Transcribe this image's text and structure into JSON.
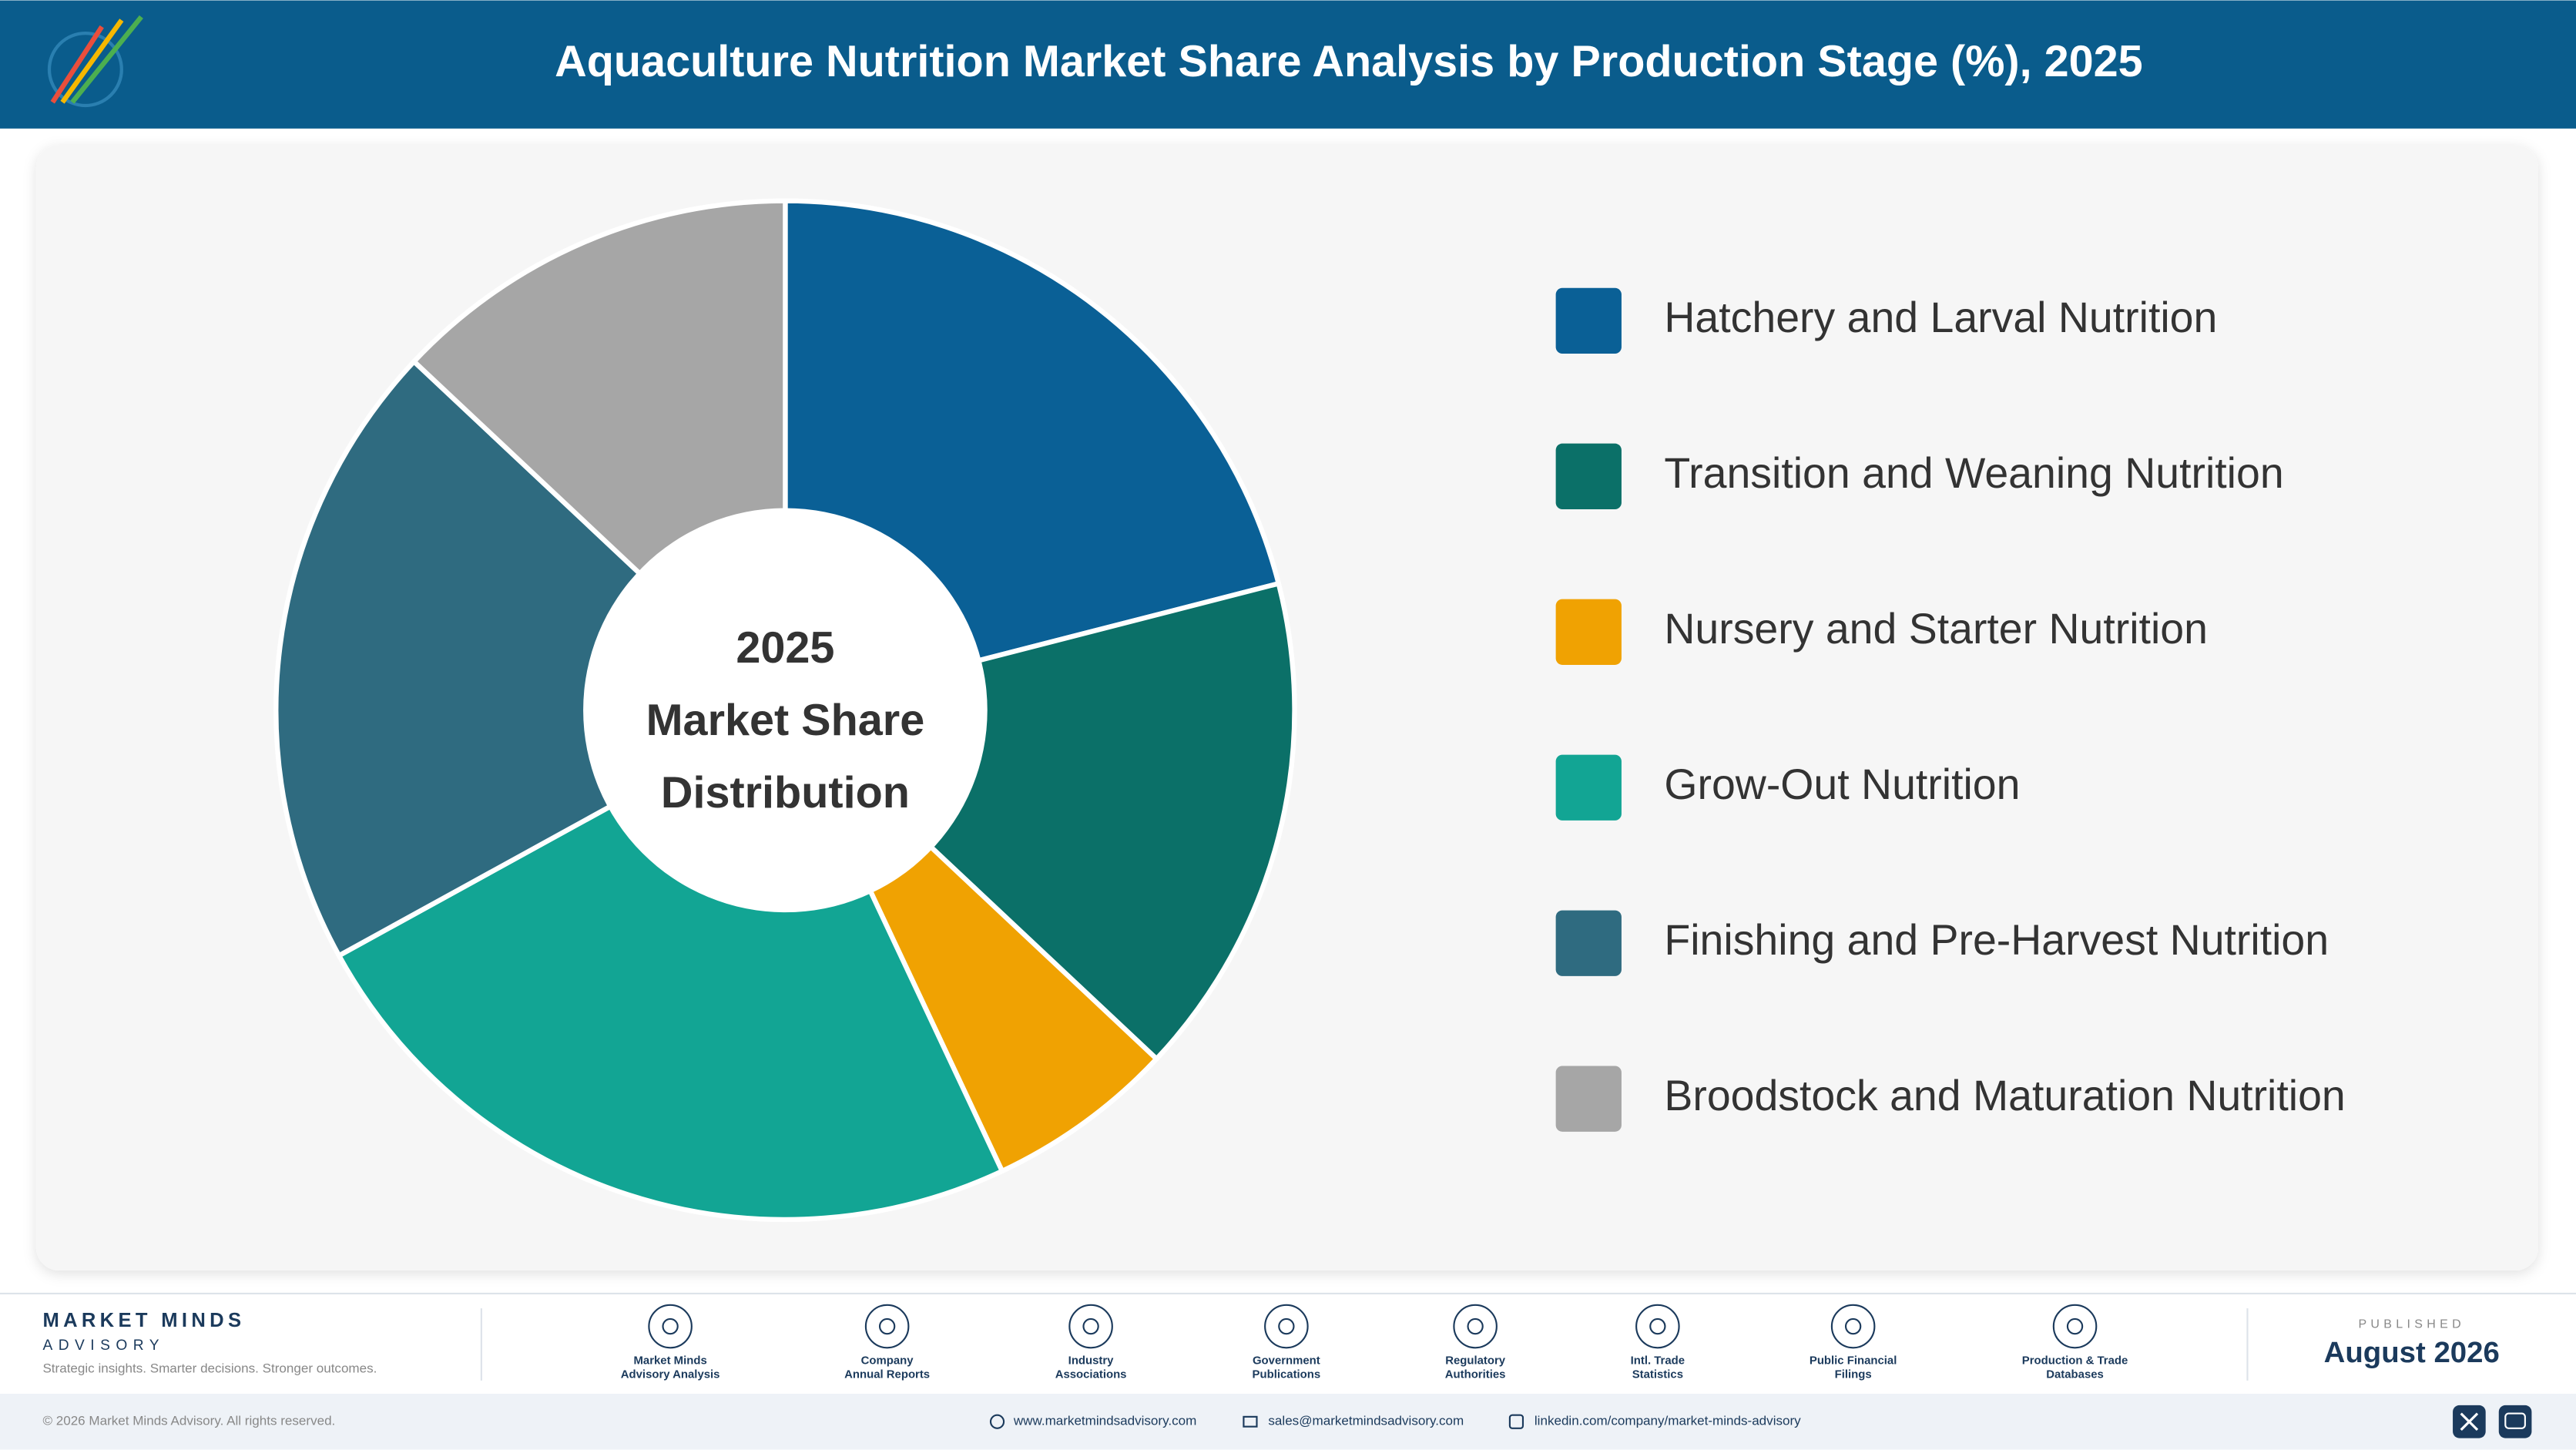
{
  "chart_data": {
    "type": "pie",
    "title": "Aquaculture Nutrition Market Share Analysis by Production Stage (%), 2025",
    "center_text": [
      "2025",
      "Market Share",
      "Distribution"
    ],
    "categories": [
      "Hatchery and Larval Nutrition",
      "Transition and Weaning Nutrition",
      "Nursery and Starter Nutrition",
      "Grow-Out Nutrition",
      "Finishing and Pre-Harvest Nutrition",
      "Broodstock and Maturation Nutrition"
    ],
    "values": [
      21,
      16,
      6,
      24,
      20,
      13
    ],
    "colors": [
      "#0a6096",
      "#0b7068",
      "#f0a202",
      "#12a594",
      "#2f6b80",
      "#a6a6a6"
    ],
    "legend": "right"
  },
  "footer": {
    "brand": "MARKET MINDS",
    "brand_sub": "ADVISORY",
    "tagline": "Strategic insights. Smarter decisions. Stronger outcomes.",
    "sources": [
      [
        "Market Minds",
        "Advisory Analysis"
      ],
      [
        "Company",
        "Annual Reports"
      ],
      [
        "Industry",
        "Associations"
      ],
      [
        "Government",
        "Publications"
      ],
      [
        "Regulatory",
        "Authorities"
      ],
      [
        "Intl. Trade",
        "Statistics"
      ],
      [
        "Public Financial",
        "Filings"
      ],
      [
        "Production & Trade",
        "Databases"
      ]
    ],
    "published_label": "PUBLISHED",
    "published_date": "August 2026",
    "copyright": "© 2026 Market Minds Advisory. All rights reserved.",
    "website": "www.marketmindsadvisory.com",
    "email": "sales@marketmindsadvisory.com",
    "linkedin": "linkedin.com/company/market-minds-advisory"
  }
}
